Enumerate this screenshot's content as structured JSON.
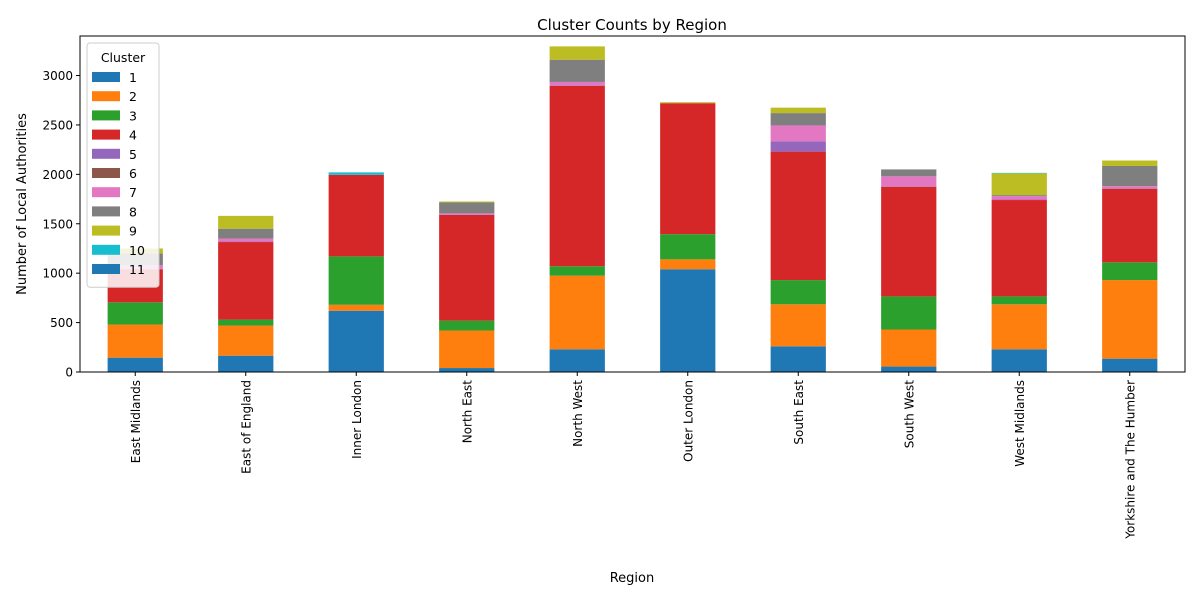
{
  "chart_data": {
    "type": "bar",
    "stacked": true,
    "title": "Cluster Counts by Region",
    "xlabel": "Region",
    "ylabel": "Number of Local Authorities",
    "ylim": [
      0,
      3400
    ],
    "yticks": [
      0,
      500,
      1000,
      1500,
      2000,
      2500,
      3000
    ],
    "grid": false,
    "legend": {
      "title": "Cluster",
      "placement": "top-left"
    },
    "categories": [
      "East Midlands",
      "East of England",
      "Inner London",
      "North East",
      "North West",
      "Outer London",
      "South East",
      "South West",
      "West Midlands",
      "Yorkshire and The Humber"
    ],
    "series": [
      {
        "name": "1",
        "color": "#1f77b4",
        "values": [
          145,
          165,
          620,
          40,
          230,
          1040,
          260,
          55,
          230,
          135
        ]
      },
      {
        "name": "2",
        "color": "#ff7f0e",
        "values": [
          335,
          305,
          60,
          380,
          745,
          100,
          425,
          375,
          455,
          795
        ]
      },
      {
        "name": "3",
        "color": "#2ca02c",
        "values": [
          225,
          60,
          490,
          100,
          95,
          255,
          245,
          335,
          80,
          180
        ]
      },
      {
        "name": "4",
        "color": "#d62728",
        "values": [
          335,
          785,
          825,
          1070,
          1825,
          1325,
          1300,
          1110,
          975,
          745
        ]
      },
      {
        "name": "5",
        "color": "#9467bd",
        "values": [
          5,
          5,
          0,
          5,
          5,
          0,
          105,
          5,
          5,
          5
        ]
      },
      {
        "name": "6",
        "color": "#8c564b",
        "values": [
          0,
          0,
          0,
          0,
          0,
          0,
          0,
          0,
          0,
          0
        ]
      },
      {
        "name": "7",
        "color": "#e377c2",
        "values": [
          35,
          30,
          0,
          10,
          35,
          0,
          160,
          100,
          35,
          20
        ]
      },
      {
        "name": "8",
        "color": "#7f7f7f",
        "values": [
          120,
          100,
          0,
          110,
          225,
          0,
          125,
          70,
          10,
          205
        ]
      },
      {
        "name": "9",
        "color": "#bcbd22",
        "values": [
          50,
          130,
          0,
          10,
          135,
          10,
          55,
          0,
          220,
          55
        ]
      },
      {
        "name": "10",
        "color": "#17becf",
        "values": [
          0,
          0,
          25,
          0,
          0,
          0,
          0,
          0,
          5,
          0
        ]
      },
      {
        "name": "11",
        "color": "#1f77b4",
        "values": [
          0,
          0,
          0,
          0,
          0,
          0,
          0,
          0,
          0,
          0
        ]
      }
    ]
  }
}
